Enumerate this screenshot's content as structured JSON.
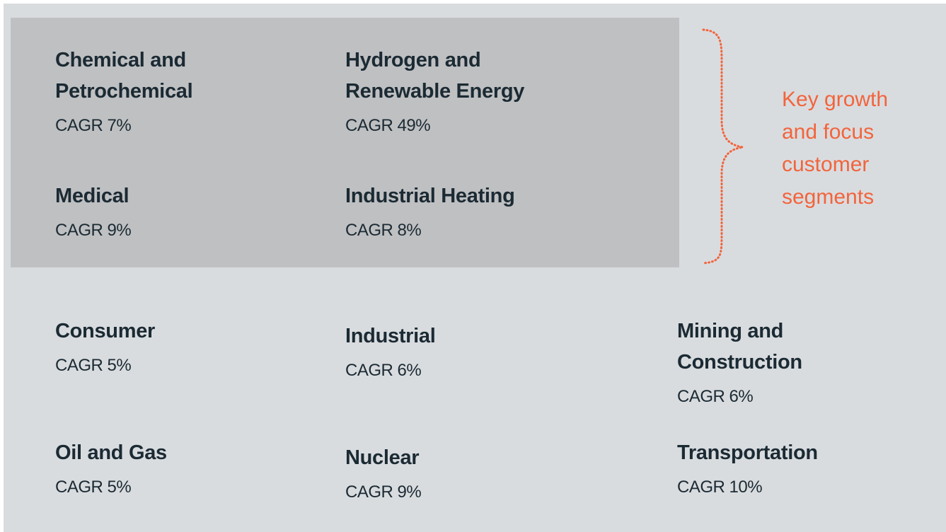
{
  "segments": [
    {
      "name": "Chemical and Petrochemical",
      "cagr": "CAGR 7%"
    },
    {
      "name": "Hydrogen and Renewable Energy",
      "cagr": "CAGR 49%"
    },
    {
      "name": "Medical",
      "cagr": "CAGR 9%"
    },
    {
      "name": "Industrial Heating",
      "cagr": "CAGR 8%"
    },
    {
      "name": "Consumer",
      "cagr": "CAGR 5%"
    },
    {
      "name": "Industrial",
      "cagr": "CAGR 6%"
    },
    {
      "name": "Mining and Construction",
      "cagr": "CAGR 6%"
    },
    {
      "name": "Oil and Gas",
      "cagr": "CAGR 5%"
    },
    {
      "name": "Nuclear",
      "cagr": "CAGR 9%"
    },
    {
      "name": "Transportation",
      "cagr": "CAGR 10%"
    }
  ],
  "callout": "Key growth and focus customer segments"
}
